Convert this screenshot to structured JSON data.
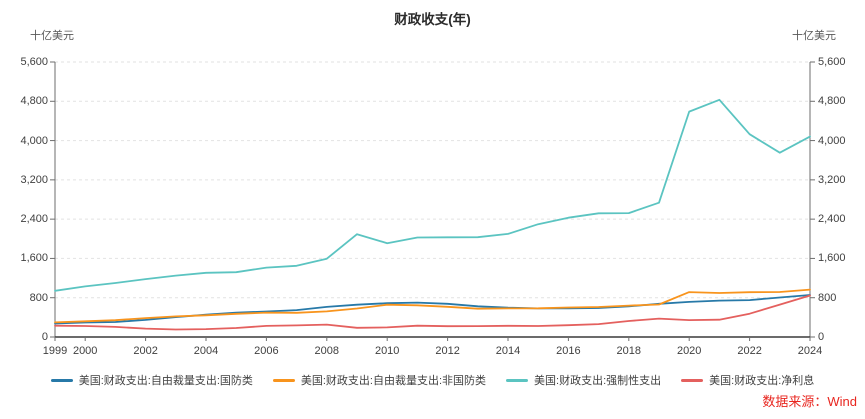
{
  "chart": {
    "title": "财政收支(年)",
    "unit_left": "十亿美元",
    "unit_right": "十亿美元",
    "source": "数据来源：Wind"
  },
  "chart_data": {
    "type": "line",
    "title": "财政收支(年)",
    "xlabel": "",
    "ylabel": "十亿美元",
    "ylim": [
      0,
      5600
    ],
    "y_ticks": [
      0,
      800,
      1600,
      2400,
      3200,
      4000,
      4800,
      5600
    ],
    "x_tick_labels": [
      "1999",
      "2000",
      "2002",
      "2004",
      "2006",
      "2008",
      "2010",
      "2012",
      "2014",
      "2016",
      "2018",
      "2020",
      "2022",
      "2024"
    ],
    "x": [
      1999,
      2000,
      2001,
      2002,
      2003,
      2004,
      2005,
      2006,
      2007,
      2008,
      2009,
      2010,
      2011,
      2012,
      2013,
      2014,
      2015,
      2016,
      2017,
      2018,
      2019,
      2020,
      2021,
      2022,
      2023,
      2024
    ],
    "grid": "horizontal-dashed",
    "legend_position": "bottom",
    "series": [
      {
        "name": "美国:财政支出:自由裁量支出:国防类",
        "color": "#2779a8",
        "values": [
          275,
          295,
          306,
          349,
          405,
          454,
          494,
          520,
          548,
          612,
          657,
          689,
          700,
          677,
          626,
          596,
          583,
          585,
          590,
          623,
          676,
          714,
          742,
          751,
          805,
          855
        ]
      },
      {
        "name": "美国:财政支出:自由裁量支出:非国防类",
        "color": "#f8941d",
        "values": [
          297,
          320,
          343,
          385,
          420,
          441,
          472,
          496,
          493,
          522,
          581,
          658,
          646,
          615,
          576,
          583,
          585,
          600,
          610,
          639,
          661,
          914,
          895,
          912,
          917,
          965
        ]
      },
      {
        "name": "美国:财政支出:强制性支出",
        "color": "#5bc4c1",
        "values": [
          940,
          1030,
          1100,
          1180,
          1250,
          1308,
          1320,
          1413,
          1450,
          1595,
          2093,
          1910,
          2027,
          2031,
          2032,
          2099,
          2297,
          2429,
          2519,
          2523,
          2734,
          4590,
          4830,
          4130,
          3754,
          4080
        ]
      },
      {
        "name": "美国:财政支出:净利息",
        "color": "#e4605e",
        "values": [
          230,
          223,
          206,
          171,
          153,
          160,
          184,
          227,
          237,
          253,
          187,
          196,
          230,
          220,
          221,
          229,
          223,
          240,
          263,
          325,
          375,
          345,
          352,
          475,
          659,
          845
        ]
      }
    ],
    "colors": {
      "grid": "#e2e2e2",
      "axis_side": "#6e6e6e",
      "axis_bottom": "#3a3a3a",
      "tick_text": "#404040",
      "source_red": "#e8261f"
    }
  }
}
